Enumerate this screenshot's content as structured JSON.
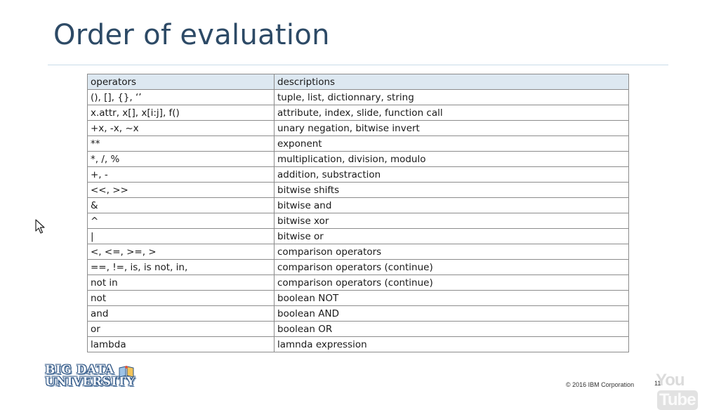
{
  "slide": {
    "title": "Order of evaluation",
    "page_number": "11",
    "copyright": "© 2016 IBM Corporation"
  },
  "table": {
    "headers": [
      "operators",
      "descriptions"
    ],
    "rows": [
      [
        "(), [], {}, ‘’",
        "tuple, list, dictionnary, string"
      ],
      [
        "x.attr, x[], x[i:j], f()",
        "attribute, index, slide, function call"
      ],
      [
        "+x, -x, ~x",
        "unary negation, bitwise invert"
      ],
      [
        "**",
        "exponent"
      ],
      [
        "*, /, %",
        "multiplication, division, modulo"
      ],
      [
        "+, -",
        "addition, substraction"
      ],
      [
        "<<, >>",
        "bitwise shifts"
      ],
      [
        "&",
        "bitwise and"
      ],
      [
        "^",
        "bitwise xor"
      ],
      [
        "|",
        "bitwise or"
      ],
      [
        "<, <=, >=, >",
        "comparison operators"
      ],
      [
        "==, !=, is, is not, in,",
        "comparison operators (continue)"
      ],
      [
        "not in",
        "comparison operators (continue)"
      ],
      [
        "not",
        "boolean NOT"
      ],
      [
        "and",
        "boolean AND"
      ],
      [
        "or",
        "boolean OR"
      ],
      [
        "lambda",
        "lamnda expression"
      ]
    ]
  },
  "logo": {
    "line1": "BIG DATA",
    "line2": "UNIVERSITY"
  },
  "watermark": {
    "part1": "You",
    "part2": "Tube"
  },
  "colors": {
    "title": "#2d4a66",
    "header_fill": "#dde8f1",
    "grid": "#8c8c8c",
    "logo_blue": "#2b5382"
  },
  "icons": [
    "mouse-cursor-icon",
    "book-icon"
  ]
}
